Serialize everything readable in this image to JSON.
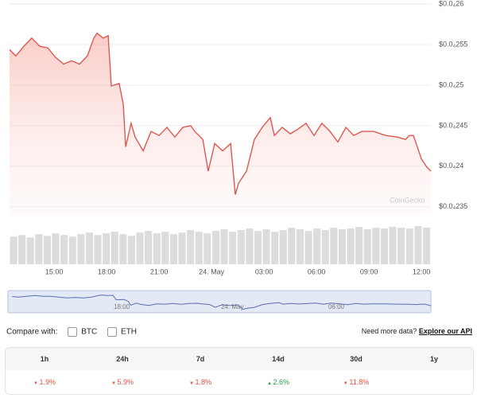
{
  "chart_data": {
    "type": "line",
    "watermark": "CoinGecko",
    "x": [
      12.45,
      12.81,
      13.27,
      13.72,
      14.18,
      14.63,
      15.09,
      15.54,
      16.0,
      16.45,
      16.9,
      17.27,
      17.45,
      17.81,
      18.09,
      18.27,
      18.72,
      18.95,
      19.09,
      19.4,
      19.63,
      20.09,
      20.54,
      21.0,
      21.45,
      21.9,
      22.36,
      22.81,
      23.04,
      23.5,
      23.81,
      24.18,
      24.63,
      25.09,
      25.36,
      25.54,
      26.0,
      26.45,
      26.9,
      27.36,
      27.59,
      28.04,
      28.5,
      28.95,
      29.4,
      29.86,
      30.31,
      30.77,
      31.22,
      31.68,
      32.13,
      32.59,
      33.27,
      33.95,
      34.63,
      35.09,
      35.31,
      35.54,
      36.0,
      36.31,
      36.54
    ],
    "series": [
      {
        "color": "#e0574f",
        "values": [
          2.544e-05,
          2.536e-05,
          2.548e-05,
          2.558e-05,
          2.548e-05,
          2.546e-05,
          2.534e-05,
          2.526e-05,
          2.53e-05,
          2.526e-05,
          2.536e-05,
          2.558e-05,
          2.564e-05,
          2.558e-05,
          2.561e-05,
          2.499e-05,
          2.502e-05,
          2.477e-05,
          2.424e-05,
          2.453e-05,
          2.436e-05,
          2.419e-05,
          2.443e-05,
          2.438e-05,
          2.448e-05,
          2.436e-05,
          2.448e-05,
          2.45e-05,
          2.443e-05,
          2.433e-05,
          2.394e-05,
          2.428e-05,
          2.419e-05,
          2.428e-05,
          2.365e-05,
          2.379e-05,
          2.394e-05,
          2.433e-05,
          2.448e-05,
          2.46e-05,
          2.438e-05,
          2.448e-05,
          2.44e-05,
          2.446e-05,
          2.453e-05,
          2.438e-05,
          2.453e-05,
          2.443e-05,
          2.43e-05,
          2.448e-05,
          2.438e-05,
          2.443e-05,
          2.443e-05,
          2.438e-05,
          2.436e-05,
          2.433e-05,
          2.438e-05,
          2.438e-05,
          2.409e-05,
          2.399e-05,
          2.394e-05
        ]
      }
    ],
    "xlim": [
      12.45,
      36.54
    ],
    "xticks": [
      {
        "value": 15,
        "label": "15:00"
      },
      {
        "value": 18,
        "label": "18:00"
      },
      {
        "value": 21,
        "label": "21:00"
      },
      {
        "value": 24,
        "label": "24. May"
      },
      {
        "value": 27,
        "label": "03:00"
      },
      {
        "value": 30,
        "label": "06:00"
      },
      {
        "value": 33,
        "label": "09:00"
      },
      {
        "value": 36,
        "label": "12:00"
      }
    ],
    "ylim": [
      2.34e-05,
      2.605e-05
    ],
    "yticks": [
      {
        "value": 2.6e-05,
        "label": "$0.0₄26"
      },
      {
        "value": 2.55e-05,
        "label": "$0.0₄255"
      },
      {
        "value": 2.5e-05,
        "label": "$0.0₄25"
      },
      {
        "value": 2.45e-05,
        "label": "$0.0₄245"
      },
      {
        "value": 2.4e-05,
        "label": "$0.0₄24"
      },
      {
        "value": 2.35e-05,
        "label": "$0.0₄235"
      }
    ],
    "grid": true,
    "volume": {
      "color": "#dcdcdc",
      "values": [
        34,
        36,
        33,
        37,
        35,
        38,
        36,
        34,
        37,
        39,
        36,
        38,
        40,
        37,
        35,
        39,
        41,
        38,
        40,
        37,
        39,
        42,
        40,
        38,
        41,
        43,
        40,
        42,
        44,
        41,
        43,
        40,
        42,
        45,
        43,
        41,
        44,
        42,
        45,
        43,
        44,
        46,
        43,
        45,
        44,
        46,
        45,
        44,
        47,
        45
      ]
    },
    "navigator": {
      "xlim": [
        12.22,
        35.87
      ],
      "line_color": "#5a6fb0",
      "fill": "#e4e9f6",
      "ticks": [
        {
          "value": 18,
          "label": "18:00"
        },
        {
          "value": 24,
          "label": "24. May"
        },
        {
          "value": 30,
          "label": "06:00"
        }
      ]
    }
  },
  "compare": {
    "label": "Compare with:",
    "options": [
      "BTC",
      "ETH"
    ]
  },
  "api": {
    "prompt": "Need more data?",
    "link": "Explore our API"
  },
  "changes": [
    {
      "period": "1h",
      "value": "1.9%",
      "direction": "down"
    },
    {
      "period": "24h",
      "value": "5.9%",
      "direction": "down"
    },
    {
      "period": "7d",
      "value": "1.8%",
      "direction": "down"
    },
    {
      "period": "14d",
      "value": "2.6%",
      "direction": "up"
    },
    {
      "period": "30d",
      "value": "11.8%",
      "direction": "down"
    },
    {
      "period": "1y"
    }
  ]
}
